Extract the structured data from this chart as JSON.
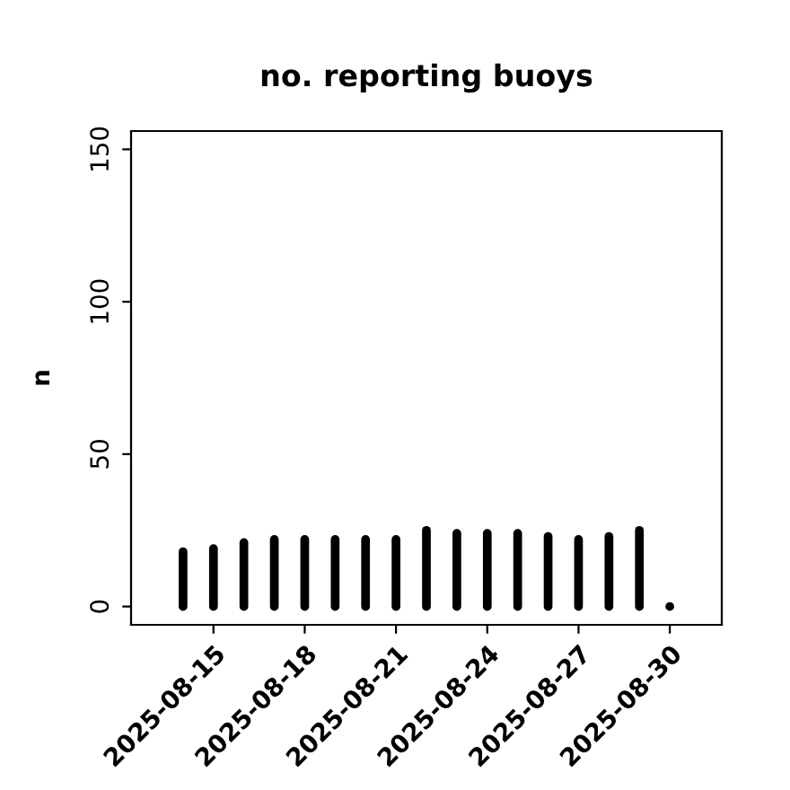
{
  "chart_data": {
    "type": "bar",
    "title": "no. reporting buoys",
    "ylabel": "n",
    "x": [
      "2025-08-14",
      "2025-08-15",
      "2025-08-16",
      "2025-08-17",
      "2025-08-18",
      "2025-08-19",
      "2025-08-20",
      "2025-08-21",
      "2025-08-22",
      "2025-08-23",
      "2025-08-24",
      "2025-08-25",
      "2025-08-26",
      "2025-08-27",
      "2025-08-28",
      "2025-08-29",
      "2025-08-30"
    ],
    "values": [
      18,
      19,
      21,
      22,
      22,
      22,
      22,
      22,
      25,
      24,
      24,
      24,
      23,
      22,
      23,
      25,
      0
    ],
    "color": "#000000",
    "xlim": [
      "2025-08-12T07:00",
      "2025-08-31T17:00"
    ],
    "xticks": [
      {
        "value": "2025-08-15",
        "label": "2025-08-15"
      },
      {
        "value": "2025-08-18",
        "label": "2025-08-18"
      },
      {
        "value": "2025-08-21",
        "label": "2025-08-21"
      },
      {
        "value": "2025-08-24",
        "label": "2025-08-24"
      },
      {
        "value": "2025-08-27",
        "label": "2025-08-27"
      },
      {
        "value": "2025-08-30",
        "label": "2025-08-30"
      }
    ],
    "ylim": [
      -6,
      156
    ],
    "yticks": [
      0,
      50,
      100,
      150
    ],
    "grid": false,
    "legend": false
  }
}
